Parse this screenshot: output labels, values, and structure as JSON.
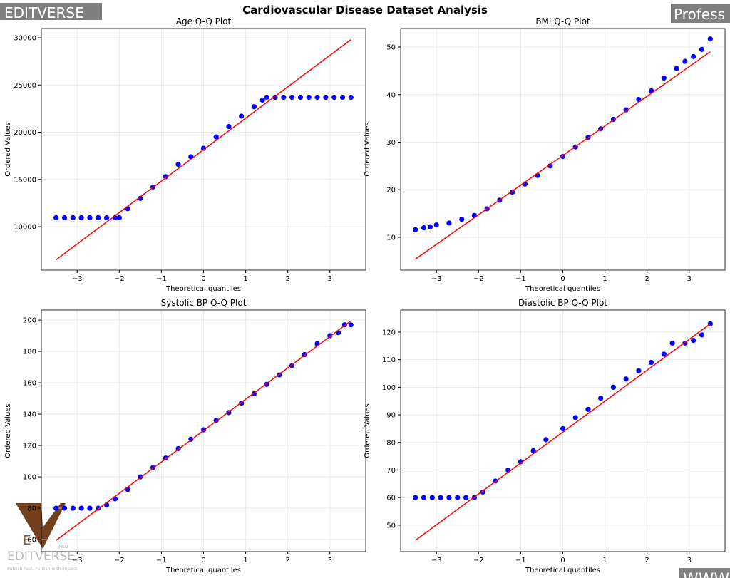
{
  "title": "Cardiovascular Disease Dataset Analysis",
  "watermarks": {
    "top_left": "EDITVERSE",
    "top_right": "Profess",
    "bottom_right": "WWW",
    "logo_letter": "E",
    "logo_name": "EDITVERSE",
    "logo_sub": "MED",
    "logo_tagline": "Publish Fast. Publish with impact."
  },
  "chart_data": [
    {
      "type": "qq",
      "title": "Age Q-Q Plot",
      "x_label": "Theoretical quantiles",
      "y_label": "Ordered Values",
      "xlim": [
        -3.85,
        3.85
      ],
      "ylim": [
        5400,
        30980
      ],
      "xticks": [
        {
          "value": -3,
          "label": "−3"
        },
        {
          "value": -2,
          "label": "−2"
        },
        {
          "value": -1,
          "label": "−1"
        },
        0,
        1,
        2,
        3
      ],
      "yticks": [
        10000,
        15000,
        20000,
        25000,
        30000
      ],
      "grid": true,
      "point_color": "#0000ff",
      "line_color": "#ff0000",
      "x": [
        -3.5,
        -3.3,
        -3.1,
        -2.9,
        -2.7,
        -2.5,
        -2.3,
        -2.1,
        -2.0,
        -1.8,
        -1.5,
        -1.2,
        -0.9,
        -0.6,
        -0.3,
        0,
        0.3,
        0.6,
        0.9,
        1.2,
        1.4,
        1.5,
        1.7,
        1.9,
        2.1,
        2.3,
        2.5,
        2.7,
        2.9,
        3.1,
        3.3,
        3.5
      ],
      "y": [
        10950,
        10950,
        10950,
        10950,
        10950,
        10950,
        10950,
        10950,
        10950,
        11900,
        13000,
        14200,
        15300,
        16600,
        17400,
        18300,
        19500,
        20600,
        21700,
        22700,
        23400,
        23700,
        23700,
        23700,
        23700,
        23700,
        23700,
        23700,
        23700,
        23700,
        23700,
        23700
      ],
      "line": {
        "x": [
          -3.5,
          3.5
        ],
        "y": [
          6500,
          29800
        ]
      }
    },
    {
      "type": "qq",
      "title": "BMI Q-Q Plot",
      "x_label": "Theoretical quantiles",
      "y_label": "Ordered Values",
      "xlim": [
        -3.85,
        3.85
      ],
      "ylim": [
        3.1,
        53.9
      ],
      "xticks": [
        {
          "value": -3,
          "label": "−3"
        },
        {
          "value": -2,
          "label": "−2"
        },
        {
          "value": -1,
          "label": "−1"
        },
        0,
        1,
        2,
        3
      ],
      "yticks": [
        10,
        20,
        30,
        40,
        50
      ],
      "grid": true,
      "point_color": "#0000ff",
      "line_color": "#ff0000",
      "x": [
        -3.5,
        -3.3,
        -3.15,
        -3.0,
        -2.7,
        -2.4,
        -2.1,
        -1.8,
        -1.5,
        -1.2,
        -0.9,
        -0.6,
        -0.3,
        0,
        0.3,
        0.6,
        0.9,
        1.2,
        1.5,
        1.8,
        2.1,
        2.4,
        2.7,
        2.9,
        3.1,
        3.3,
        3.5
      ],
      "y": [
        11.6,
        12,
        12.2,
        12.6,
        13,
        13.8,
        14.6,
        16,
        17.8,
        19.5,
        21.2,
        23,
        25,
        27,
        29,
        31,
        32.8,
        34.8,
        36.8,
        39,
        40.8,
        43.5,
        45.5,
        47,
        48,
        49.5,
        51.7
      ],
      "line": {
        "x": [
          -3.5,
          3.5
        ],
        "y": [
          5.4,
          49
        ]
      }
    },
    {
      "type": "qq",
      "title": "Systolic BP Q-Q Plot",
      "x_label": "Theoretical quantiles",
      "y_label": "Ordered Values",
      "xlim": [
        -3.85,
        3.85
      ],
      "ylim": [
        52.3,
        206.4
      ],
      "xticks": [
        {
          "value": -3,
          "label": "−3"
        },
        {
          "value": -2,
          "label": "−2"
        },
        {
          "value": -1,
          "label": "−1"
        },
        0,
        1,
        2,
        3
      ],
      "yticks": [
        60,
        80,
        100,
        120,
        140,
        160,
        180,
        200
      ],
      "grid": true,
      "point_color": "#0000ff",
      "line_color": "#ff0000",
      "x": [
        -3.5,
        -3.3,
        -3.1,
        -2.9,
        -2.7,
        -2.5,
        -2.3,
        -2.1,
        -1.8,
        -1.5,
        -1.2,
        -0.9,
        -0.6,
        -0.3,
        0,
        0.3,
        0.6,
        0.9,
        1.2,
        1.5,
        1.8,
        2.1,
        2.4,
        2.7,
        3.0,
        3.2,
        3.35,
        3.5
      ],
      "y": [
        80,
        80,
        80,
        80,
        80,
        80,
        82,
        86,
        92,
        100,
        106,
        112,
        118,
        124,
        130,
        136,
        141,
        147,
        153,
        159,
        165,
        171,
        178,
        185,
        190,
        192,
        197,
        197
      ],
      "line": {
        "x": [
          -3.5,
          3.5
        ],
        "y": [
          59.5,
          199.5
        ]
      }
    },
    {
      "type": "qq",
      "title": "Diastolic BP Q-Q Plot",
      "x_label": "Theoretical quantiles",
      "y_label": "Ordered Values",
      "xlim": [
        -3.85,
        3.85
      ],
      "ylim": [
        40.4,
        128
      ],
      "xticks": [
        {
          "value": -3,
          "label": "−3"
        },
        {
          "value": -2,
          "label": "−2"
        },
        {
          "value": -1,
          "label": "−1"
        },
        0,
        1,
        2,
        3
      ],
      "yticks": [
        50,
        60,
        70,
        80,
        90,
        100,
        110,
        120
      ],
      "grid": true,
      "point_color": "#0000ff",
      "line_color": "#ff0000",
      "x": [
        -3.5,
        -3.3,
        -3.1,
        -2.9,
        -2.7,
        -2.5,
        -2.3,
        -2.1,
        -1.9,
        -1.6,
        -1.3,
        -1.0,
        -0.7,
        -0.4,
        0,
        0.3,
        0.6,
        0.9,
        1.2,
        1.5,
        1.8,
        2.1,
        2.4,
        2.6,
        2.9,
        3.1,
        3.3,
        3.5
      ],
      "y": [
        60,
        60,
        60,
        60,
        60,
        60,
        60,
        60,
        62,
        66,
        70,
        73,
        77,
        81,
        85,
        89,
        92,
        96,
        100,
        103,
        106,
        109,
        112,
        116,
        116,
        117,
        119,
        123
      ],
      "line": {
        "x": [
          -3.5,
          3.5
        ],
        "y": [
          44.5,
          123
        ]
      }
    }
  ]
}
